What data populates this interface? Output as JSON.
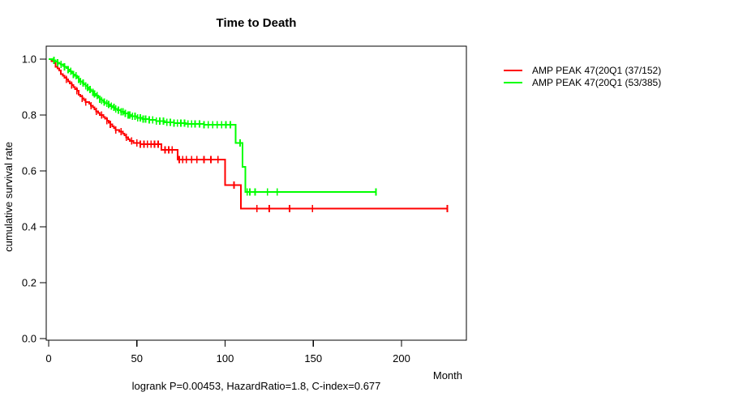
{
  "chart_data": {
    "type": "line",
    "subtype": "kaplan-meier-step-survival",
    "title": "Time to Death",
    "xlabel": "Month",
    "ylabel": "cumulative survival rate",
    "annotation": "logrank P=0.00453, HazardRatio=1.8, C-index=0.677",
    "x_ticks": [
      0,
      50,
      100,
      150,
      200
    ],
    "y_ticks": [
      0.0,
      0.2,
      0.4,
      0.6,
      0.8,
      1.0
    ],
    "xlim": [
      0,
      237
    ],
    "ylim": [
      0.0,
      1.0
    ],
    "grid": false,
    "legend_position": "right-outside",
    "series": [
      {
        "name": "AMP PEAK 47(20Q1 (37/152)",
        "color": "#FF0000",
        "events_over_total": "37/152",
        "steps": [
          [
            0,
            1.0
          ],
          [
            1.5,
            0.993
          ],
          [
            3,
            0.987
          ],
          [
            4,
            0.973
          ],
          [
            5,
            0.967
          ],
          [
            6,
            0.96
          ],
          [
            7,
            0.947
          ],
          [
            8,
            0.94
          ],
          [
            9,
            0.933
          ],
          [
            10,
            0.927
          ],
          [
            11,
            0.92
          ],
          [
            12,
            0.913
          ],
          [
            13,
            0.907
          ],
          [
            14,
            0.9
          ],
          [
            15,
            0.893
          ],
          [
            16,
            0.887
          ],
          [
            17,
            0.873
          ],
          [
            18,
            0.867
          ],
          [
            19,
            0.86
          ],
          [
            20,
            0.853
          ],
          [
            21,
            0.847
          ],
          [
            23,
            0.84
          ],
          [
            24,
            0.833
          ],
          [
            25,
            0.827
          ],
          [
            26,
            0.82
          ],
          [
            27,
            0.813
          ],
          [
            28,
            0.807
          ],
          [
            29,
            0.8
          ],
          [
            31,
            0.793
          ],
          [
            32,
            0.787
          ],
          [
            33,
            0.78
          ],
          [
            34,
            0.773
          ],
          [
            35,
            0.767
          ],
          [
            36,
            0.76
          ],
          [
            37,
            0.753
          ],
          [
            38,
            0.747
          ],
          [
            40,
            0.74
          ],
          [
            42,
            0.733
          ],
          [
            43,
            0.727
          ],
          [
            44,
            0.72
          ],
          [
            45,
            0.713
          ],
          [
            46,
            0.707
          ],
          [
            48,
            0.7
          ],
          [
            52,
            0.695
          ],
          [
            64,
            0.675
          ],
          [
            73,
            0.64
          ],
          [
            100,
            0.55
          ],
          [
            109,
            0.465
          ],
          [
            226,
            0.465
          ]
        ],
        "censor_marks_months": [
          10,
          13,
          16,
          19,
          21,
          24,
          27,
          30,
          33,
          35,
          38,
          41,
          44,
          47,
          50,
          52,
          54,
          56,
          58,
          60,
          62,
          66,
          68,
          70,
          74,
          76,
          78,
          81,
          84,
          88,
          92,
          96,
          105,
          118,
          125,
          136.5,
          149.5,
          226
        ]
      },
      {
        "name": "AMP PEAK 47(20Q1 (53/385)",
        "color": "#00FF00",
        "events_over_total": "53/385",
        "steps": [
          [
            0,
            1.0
          ],
          [
            2,
            0.997
          ],
          [
            3,
            0.995
          ],
          [
            4,
            0.992
          ],
          [
            5,
            0.987
          ],
          [
            6,
            0.984
          ],
          [
            7,
            0.981
          ],
          [
            8,
            0.976
          ],
          [
            9,
            0.973
          ],
          [
            10,
            0.968
          ],
          [
            11,
            0.963
          ],
          [
            12,
            0.957
          ],
          [
            13,
            0.95
          ],
          [
            14,
            0.945
          ],
          [
            15,
            0.94
          ],
          [
            16,
            0.934
          ],
          [
            17,
            0.927
          ],
          [
            18,
            0.921
          ],
          [
            19,
            0.915
          ],
          [
            20,
            0.91
          ],
          [
            21,
            0.905
          ],
          [
            22,
            0.898
          ],
          [
            23,
            0.892
          ],
          [
            24,
            0.886
          ],
          [
            25,
            0.881
          ],
          [
            26,
            0.875
          ],
          [
            27,
            0.869
          ],
          [
            28,
            0.863
          ],
          [
            29,
            0.857
          ],
          [
            30,
            0.852
          ],
          [
            31,
            0.847
          ],
          [
            32,
            0.842
          ],
          [
            34,
            0.837
          ],
          [
            35,
            0.832
          ],
          [
            36,
            0.827
          ],
          [
            38,
            0.822
          ],
          [
            39,
            0.817
          ],
          [
            41,
            0.812
          ],
          [
            43,
            0.806
          ],
          [
            45,
            0.8
          ],
          [
            47,
            0.795
          ],
          [
            50,
            0.79
          ],
          [
            53,
            0.786
          ],
          [
            57,
            0.782
          ],
          [
            61,
            0.778
          ],
          [
            66,
            0.774
          ],
          [
            71,
            0.771
          ],
          [
            78,
            0.768
          ],
          [
            88,
            0.765
          ],
          [
            106,
            0.7
          ],
          [
            109.8,
            0.615
          ],
          [
            111.5,
            0.525
          ],
          [
            185.5,
            0.525
          ]
        ],
        "censor_marks_months": [
          3,
          5,
          7,
          9,
          11,
          12.5,
          14,
          15.5,
          17,
          18,
          19.5,
          21,
          22,
          23.5,
          25,
          26,
          27.5,
          29,
          30,
          31.5,
          33,
          34,
          35.5,
          37,
          38,
          39.5,
          41,
          42,
          43.5,
          45,
          46,
          47.5,
          49,
          50.5,
          52,
          53.5,
          55,
          57,
          59,
          61,
          63,
          65,
          67,
          69,
          71,
          73,
          75,
          77,
          79,
          81,
          83,
          85.5,
          88,
          90.5,
          93,
          95.5,
          98,
          100.5,
          103,
          108.5,
          112.5,
          114,
          117,
          124,
          129.5,
          185.5
        ]
      }
    ]
  }
}
